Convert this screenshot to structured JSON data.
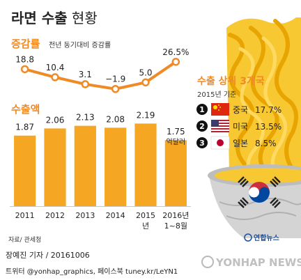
{
  "header": {
    "title_bold": "라면 수출",
    "title_light": " 현황"
  },
  "growth_section": {
    "label": "증감률",
    "sublabel": "전년 동기대비 증감률"
  },
  "export_section": {
    "label": "수출액"
  },
  "top3": {
    "title": "수출 상위 3개국",
    "subtitle": "2015년 기준",
    "items": [
      {
        "rank": "1",
        "country": "중국",
        "value": "17.7%",
        "flag_icon": "china-flag-icon"
      },
      {
        "rank": "2",
        "country": "미국",
        "value": "13.5%",
        "flag_icon": "usa-flag-icon"
      },
      {
        "rank": "3",
        "country": "일본",
        "value": "8.5%",
        "flag_icon": "japan-flag-icon"
      }
    ]
  },
  "source": "자료/ 관세청",
  "credit": "장예진 기자 / 20161006",
  "credit2": "트위터 @yonhap_graphics, 페이스북 tuney.kr/LeYN1",
  "brand": "연합뉴스",
  "watermark": "YONHAP NEWS",
  "colors": {
    "accent": "#f08a24",
    "bar": "#f5a623",
    "background": "#ffffff",
    "noodle": "#f7c832",
    "bowl": "#cfcfcf"
  },
  "chart_data": [
    {
      "type": "line",
      "title": "증감률",
      "subtitle": "전년 동기대비 증감률",
      "categories": [
        "2011",
        "2012",
        "2013",
        "2014",
        "2015",
        "2016년 1~8월"
      ],
      "values": [
        18.8,
        10.4,
        3.1,
        -1.9,
        5.0,
        26.5
      ],
      "value_labels": [
        "18.8",
        "10.4",
        "3.1",
        "−1.9",
        "5.0",
        "26.5%"
      ],
      "unit": "%"
    },
    {
      "type": "bar",
      "title": "수출액",
      "categories": [
        "2011",
        "2012",
        "2013",
        "2014",
        "2015년",
        "2016년 1~8월"
      ],
      "values": [
        1.87,
        2.06,
        2.13,
        2.08,
        2.19,
        1.75
      ],
      "value_labels": [
        "1.87",
        "2.06",
        "2.13",
        "2.08",
        "2.19",
        "1.75"
      ],
      "last_label_unit": "억달러"
    }
  ]
}
